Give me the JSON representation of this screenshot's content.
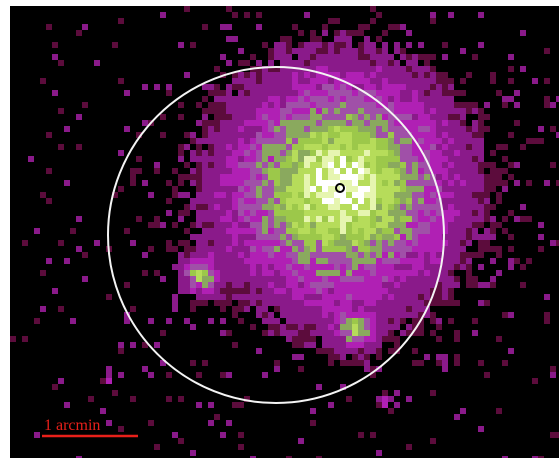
{
  "scale_bar": {
    "label": "1 arcmin"
  }
}
